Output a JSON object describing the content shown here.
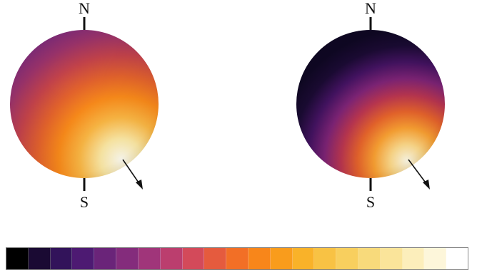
{
  "spheres": [
    {
      "id": "left",
      "north_label": "N",
      "south_label": "S",
      "gradient": [
        "#fffdf2",
        "#fde9a5",
        "#fbb744",
        "#f98a1a",
        "#e2622c",
        "#c2424a",
        "#98326a",
        "#74297a"
      ]
    },
    {
      "id": "right",
      "north_label": "N",
      "south_label": "S",
      "gradient": [
        "#fffbe8",
        "#fdd98a",
        "#f9a032",
        "#e5632b",
        "#b8354f",
        "#7c2374",
        "#42125f",
        "#1a0a32",
        "#0e0722"
      ]
    }
  ],
  "colorbar": {
    "colors": [
      "#000000",
      "#1a0a33",
      "#32135a",
      "#4d1a72",
      "#6a2479",
      "#842c7c",
      "#a0357a",
      "#bb3e6e",
      "#d34a5a",
      "#e55b3e",
      "#f26f26",
      "#f8861a",
      "#f99c1c",
      "#f9b229",
      "#f8c244",
      "#f8cf5e",
      "#f8da7b",
      "#fae49a",
      "#fceebb",
      "#fdf6da",
      "#ffffff"
    ]
  }
}
